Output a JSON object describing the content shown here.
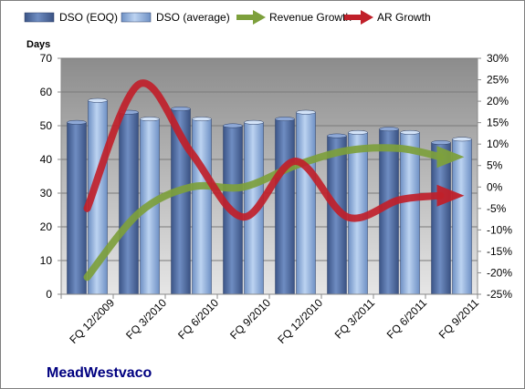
{
  "chart_data": {
    "type": "bar",
    "title": "",
    "caption": "MeadWestvaco",
    "categories": [
      "FQ 12/2009",
      "FQ 3/2010",
      "FQ 6/2010",
      "FQ 9/2010",
      "FQ 12/2010",
      "FQ 3/2011",
      "FQ 6/2011",
      "FQ 9/2011"
    ],
    "left_axis": {
      "label": "Days",
      "min": 0,
      "max": 70,
      "step": 10
    },
    "right_axis": {
      "label": "",
      "min": -25,
      "max": 30,
      "step": 5,
      "unit": "%"
    },
    "series": [
      {
        "name": "DSO (EOQ)",
        "kind": "bar",
        "axis": "left",
        "color": "#4f6fa3",
        "values": [
          51,
          54,
          55,
          50,
          52,
          47,
          49,
          45
        ]
      },
      {
        "name": "DSO (average)",
        "kind": "bar",
        "axis": "left",
        "color": "#93b3e0",
        "values": [
          57.5,
          52,
          52,
          51,
          54,
          48,
          48,
          46
        ]
      },
      {
        "name": "Revenue Growth",
        "kind": "line",
        "axis": "right",
        "color": "#7da03c",
        "values": [
          -21,
          -6,
          0,
          0,
          5,
          8.5,
          9,
          7
        ]
      },
      {
        "name": "AR Growth",
        "kind": "line",
        "axis": "right",
        "color": "#c0202a",
        "values": [
          -5,
          24,
          8,
          -7,
          6,
          -7,
          -3,
          -2
        ]
      }
    ],
    "grid": true,
    "legend_position": "top"
  }
}
